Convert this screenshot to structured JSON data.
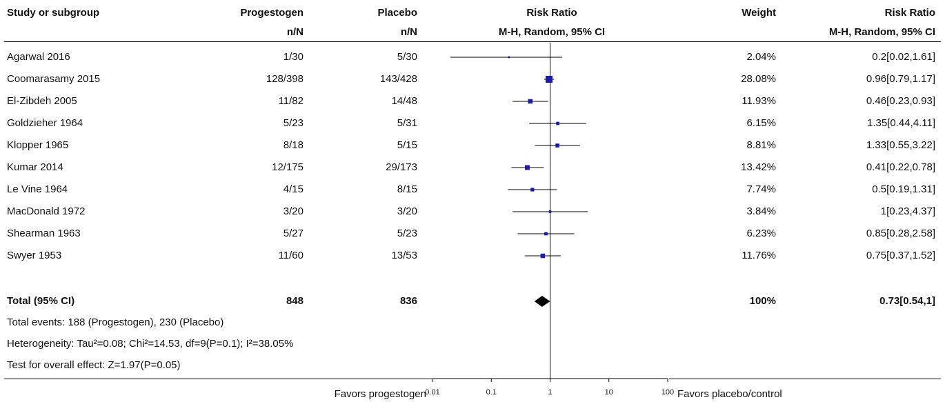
{
  "headers": {
    "study": "Study or subgroup",
    "group1": "Progestogen",
    "group1_sub": "n/N",
    "group2": "Placebo",
    "group2_sub": "n/N",
    "plot": "Risk Ratio",
    "plot_sub": "M-H, Random, 95% CI",
    "weight": "Weight",
    "rr": "Risk Ratio",
    "rr_sub": "M-H, Random, 95% CI"
  },
  "studies": [
    {
      "name": "Agarwal 2016",
      "g1": "1/30",
      "g2": "5/30",
      "weight": "2.04%",
      "rr_text": "0.2[0.02,1.61]"
    },
    {
      "name": "Coomarasamy 2015",
      "g1": "128/398",
      "g2": "143/428",
      "weight": "28.08%",
      "rr_text": "0.96[0.79,1.17]"
    },
    {
      "name": "El-Zibdeh 2005",
      "g1": "11/82",
      "g2": "14/48",
      "weight": "11.93%",
      "rr_text": "0.46[0.23,0.93]"
    },
    {
      "name": "Goldzieher 1964",
      "g1": "5/23",
      "g2": "5/31",
      "weight": "6.15%",
      "rr_text": "1.35[0.44,4.11]"
    },
    {
      "name": "Klopper 1965",
      "g1": "8/18",
      "g2": "5/15",
      "weight": "8.81%",
      "rr_text": "1.33[0.55,3.22]"
    },
    {
      "name": "Kumar 2014",
      "g1": "12/175",
      "g2": "29/173",
      "weight": "13.42%",
      "rr_text": "0.41[0.22,0.78]"
    },
    {
      "name": "Le Vine 1964",
      "g1": "4/15",
      "g2": "8/15",
      "weight": "7.74%",
      "rr_text": "0.5[0.19,1.31]"
    },
    {
      "name": "MacDonald 1972",
      "g1": "3/20",
      "g2": "3/20",
      "weight": "3.84%",
      "rr_text": "1[0.23,4.37]"
    },
    {
      "name": "Shearman 1963",
      "g1": "5/27",
      "g2": "5/23",
      "weight": "6.23%",
      "rr_text": "0.85[0.28,2.58]"
    },
    {
      "name": "Swyer 1953",
      "g1": "11/60",
      "g2": "13/53",
      "weight": "11.76%",
      "rr_text": "0.75[0.37,1.52]"
    }
  ],
  "total": {
    "label": "Total (95% CI)",
    "g1": "848",
    "g2": "836",
    "weight": "100%",
    "rr_text": "0.73[0.54,1]"
  },
  "footnotes": {
    "events": "Total events: 188 (Progestogen), 230 (Placebo)",
    "heterogeneity": "Heterogeneity: Tau²=0.08; Chi²=14.53, df=9(P=0.1); I²=38.05%",
    "overall": "Test for overall effect: Z=1.97(P=0.05)"
  },
  "axis": {
    "favors_left": "Favors progestogen",
    "favors_right": "Favors placebo/control"
  },
  "colors": {
    "square": "#1a1aa6",
    "diamond": "#000000"
  },
  "chart_data": {
    "type": "forest",
    "scale": "log",
    "xlim": [
      0.01,
      100
    ],
    "ticks": [
      0.01,
      0.1,
      1,
      10,
      100
    ],
    "tick_labels": [
      "0.01",
      "0.1",
      "1",
      "10",
      "100"
    ],
    "reference_line": 1,
    "studies": [
      {
        "rr": 0.2,
        "lo": 0.02,
        "hi": 1.61,
        "weight": 2.04
      },
      {
        "rr": 0.96,
        "lo": 0.79,
        "hi": 1.17,
        "weight": 28.08
      },
      {
        "rr": 0.46,
        "lo": 0.23,
        "hi": 0.93,
        "weight": 11.93
      },
      {
        "rr": 1.35,
        "lo": 0.44,
        "hi": 4.11,
        "weight": 6.15
      },
      {
        "rr": 1.33,
        "lo": 0.55,
        "hi": 3.22,
        "weight": 8.81
      },
      {
        "rr": 0.41,
        "lo": 0.22,
        "hi": 0.78,
        "weight": 13.42
      },
      {
        "rr": 0.5,
        "lo": 0.19,
        "hi": 1.31,
        "weight": 7.74
      },
      {
        "rr": 1,
        "lo": 0.23,
        "hi": 4.37,
        "weight": 3.84
      },
      {
        "rr": 0.85,
        "lo": 0.28,
        "hi": 2.58,
        "weight": 6.23
      },
      {
        "rr": 0.75,
        "lo": 0.37,
        "hi": 1.52,
        "weight": 11.76
      }
    ],
    "total": {
      "rr": 0.73,
      "lo": 0.54,
      "hi": 1
    }
  }
}
